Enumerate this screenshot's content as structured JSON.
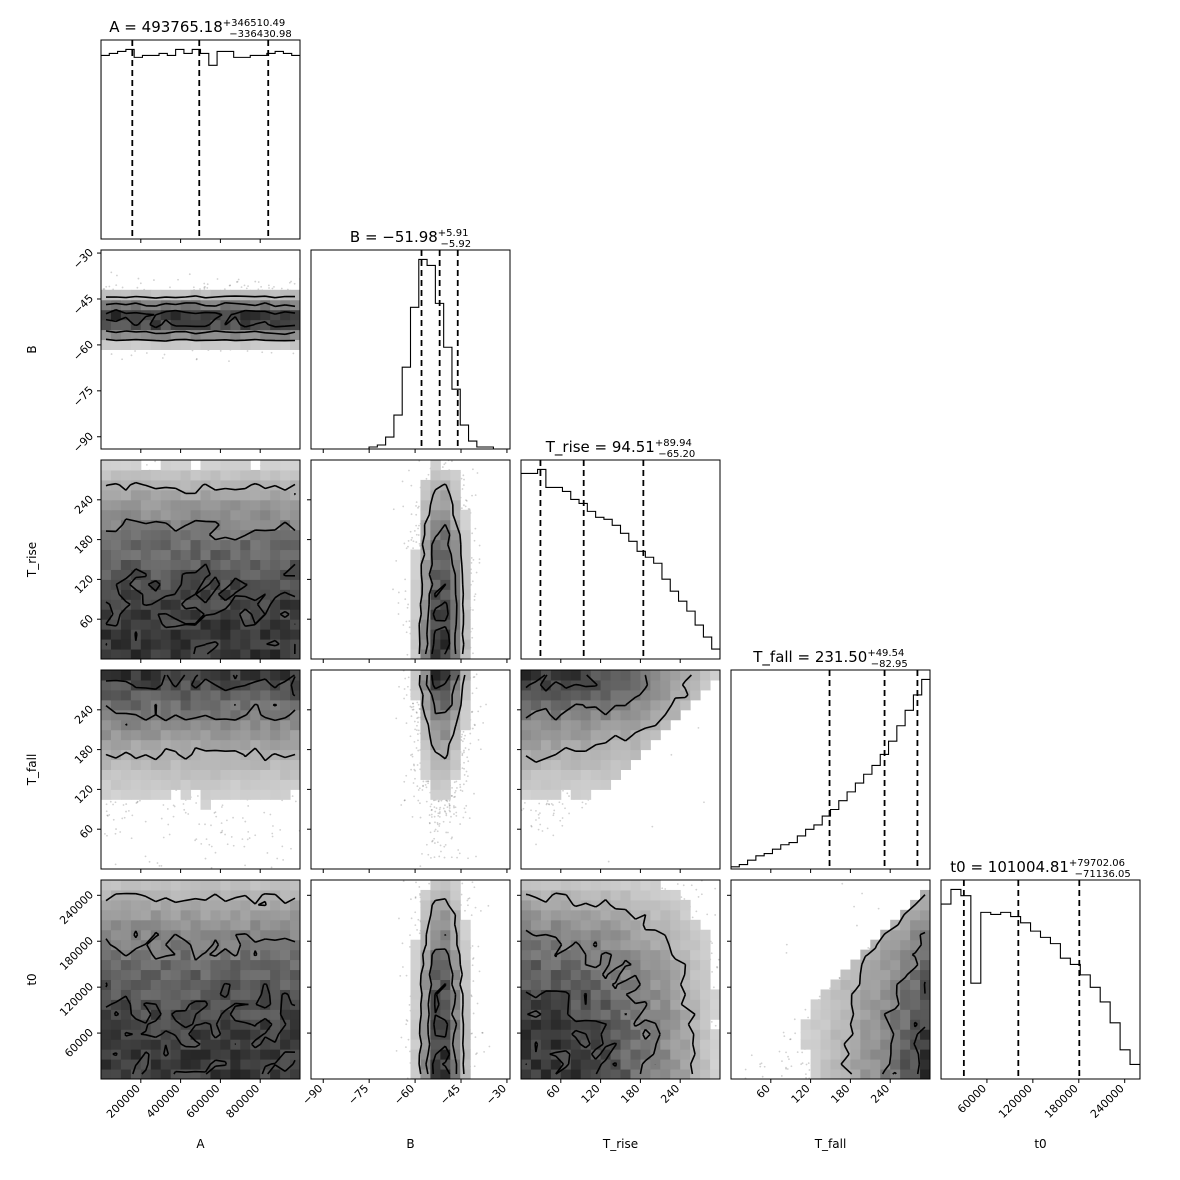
{
  "chart_data": {
    "type": "corner",
    "parameters": [
      {
        "name": "A",
        "xlabel": "A",
        "ylabel": "",
        "range": [
          0,
          1000000
        ],
        "ticks": [
          200000,
          400000,
          600000,
          800000
        ],
        "tick_labels": [
          "200000",
          "400000",
          "600000",
          "800000"
        ],
        "title": "A = 493765.18",
        "title_sup": "+346510.49",
        "title_sub": "−336430.98",
        "quantiles": [
          157334.2,
          493765.18,
          840275.67
        ],
        "hist_density": [
          0.93,
          0.94,
          0.95,
          0.96,
          0.92,
          0.93,
          0.93,
          0.94,
          0.93,
          0.96,
          0.94,
          0.96,
          0.94,
          0.88,
          0.95,
          0.95,
          0.92,
          0.92,
          0.93,
          0.93,
          0.94,
          0.95,
          0.94,
          0.93
        ]
      },
      {
        "name": "B",
        "xlabel": "B",
        "ylabel": "B",
        "range": [
          -94,
          -29
        ],
        "ticks": [
          -90,
          -75,
          -60,
          -45,
          -30
        ],
        "tick_labels": [
          "−90",
          "−75",
          "−60",
          "−45",
          "−30"
        ],
        "title": "B = −51.98",
        "title_sup": "+5.91",
        "title_sub": "−5.92",
        "quantiles": [
          -57.9,
          -51.98,
          -46.07
        ],
        "hist_density": [
          0.0,
          0.0,
          0.0,
          0.0,
          0.0,
          0.0,
          0.0,
          0.01,
          0.02,
          0.06,
          0.17,
          0.41,
          0.71,
          0.95,
          0.92,
          0.73,
          0.51,
          0.3,
          0.12,
          0.04,
          0.01,
          0.01,
          0.0,
          0.0
        ]
      },
      {
        "name": "T_rise",
        "xlabel": "T_rise",
        "ylabel": "T_rise",
        "range": [
          0,
          300
        ],
        "ticks": [
          60,
          120,
          180,
          240
        ],
        "tick_labels": [
          "60",
          "120",
          "180",
          "240"
        ],
        "title": "T_rise = 94.51",
        "title_sup": "+89.94",
        "title_sub": "−65.20",
        "quantiles": [
          29.31,
          94.51,
          184.45
        ],
        "hist_density": [
          0.93,
          0.93,
          0.95,
          0.86,
          0.86,
          0.84,
          0.8,
          0.78,
          0.74,
          0.71,
          0.7,
          0.67,
          0.63,
          0.59,
          0.54,
          0.51,
          0.48,
          0.4,
          0.34,
          0.29,
          0.24,
          0.17,
          0.11,
          0.05
        ]
      },
      {
        "name": "T_fall",
        "xlabel": "T_fall",
        "ylabel": "T_fall",
        "range": [
          0,
          300
        ],
        "ticks": [
          60,
          120,
          180,
          240
        ],
        "tick_labels": [
          "60",
          "120",
          "180",
          "240"
        ],
        "title": "T_fall = 231.50",
        "title_sup": "+49.54",
        "title_sub": "−82.95",
        "quantiles": [
          148.55,
          231.5,
          281.04
        ],
        "hist_density": [
          0.01,
          0.02,
          0.04,
          0.06,
          0.07,
          0.09,
          0.11,
          0.12,
          0.15,
          0.18,
          0.2,
          0.24,
          0.27,
          0.31,
          0.35,
          0.39,
          0.43,
          0.47,
          0.52,
          0.58,
          0.65,
          0.72,
          0.79,
          0.86
        ]
      },
      {
        "name": "t0",
        "xlabel": "t0",
        "ylabel": "t0",
        "range": [
          0,
          260000
        ],
        "ticks": [
          60000,
          120000,
          180000,
          240000
        ],
        "tick_labels": [
          "60000",
          "120000",
          "180000",
          "240000"
        ],
        "title": "t0 = 101004.81",
        "title_sup": "+79702.06",
        "title_sub": "−71136.05",
        "quantiles": [
          29868.76,
          101004.81,
          180706.87
        ],
        "hist_density": [
          0.84,
          0.91,
          0.88,
          0.46,
          0.8,
          0.79,
          0.8,
          0.78,
          0.75,
          0.71,
          0.68,
          0.65,
          0.58,
          0.55,
          0.5,
          0.44,
          0.37,
          0.27,
          0.14,
          0.07
        ]
      }
    ],
    "quantile_levels": [
      0.16,
      0.5,
      0.84
    ],
    "samples_color": "#000000",
    "contour_levels": 3
  }
}
